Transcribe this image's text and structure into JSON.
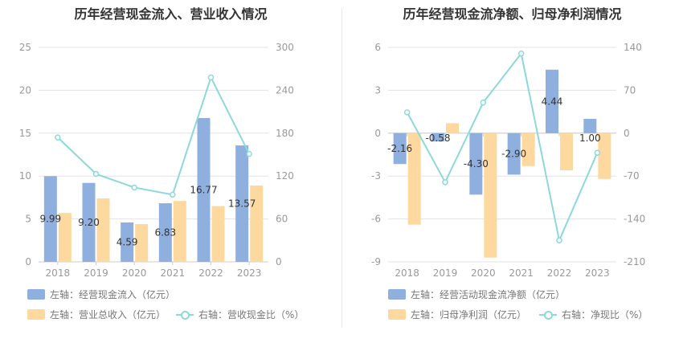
{
  "titles": {
    "left": "历年经营现金流入、营业收入情况",
    "right": "历年经营现金流净额、归母净利润情况"
  },
  "colors": {
    "bar_primary": "#8FAFDE",
    "bar_secondary": "#FDD9A0",
    "line": "#8DD8DB",
    "grid": "#E3E3E3",
    "axis_text": "#999999",
    "label_text": "#333333"
  },
  "legend_left": [
    {
      "kind": "bar",
      "color": "#8FAFDE",
      "label": "左轴：经营现金流入（亿元）"
    },
    {
      "kind": "bar",
      "color": "#FDD9A0",
      "label": "左轴：营业总收入（亿元）"
    },
    {
      "kind": "line",
      "color": "#8DD8DB",
      "label": "右轴：营收现金比（%）"
    }
  ],
  "legend_right": [
    {
      "kind": "bar",
      "color": "#8FAFDE",
      "label": "左轴：经营活动现金流净额（亿元）"
    },
    {
      "kind": "bar",
      "color": "#FDD9A0",
      "label": "左轴：归母净利润（亿元）"
    },
    {
      "kind": "line",
      "color": "#8DD8DB",
      "label": "右轴：净现比（%）"
    }
  ],
  "chart_data": [
    {
      "type": "bar",
      "title": "历年经营现金流入、营业收入情况",
      "categories": [
        "2018",
        "2019",
        "2020",
        "2021",
        "2022",
        "2023"
      ],
      "y_left": {
        "min": 0,
        "max": 25,
        "ticks": [
          "0",
          "5",
          "10",
          "15",
          "20",
          "25"
        ]
      },
      "y_right": {
        "min": 0,
        "max": 300,
        "ticks": [
          "0",
          "60",
          "120",
          "180",
          "240",
          "300"
        ]
      },
      "grid": true,
      "legend_position": "bottom",
      "series": [
        {
          "name": "经营现金流入",
          "axis": "left",
          "kind": "bar",
          "color": "#8FAFDE",
          "values": [
            9.99,
            9.2,
            4.59,
            6.83,
            16.77,
            13.57
          ],
          "labels": [
            "9.99",
            "9.20",
            "4.59",
            "6.83",
            "16.77",
            "13.57"
          ]
        },
        {
          "name": "营业总收入",
          "axis": "left",
          "kind": "bar",
          "color": "#FDD9A0",
          "values": [
            5.7,
            7.4,
            4.4,
            7.1,
            6.5,
            8.9
          ]
        },
        {
          "name": "营收现金比",
          "axis": "right",
          "kind": "line",
          "color": "#8DD8DB",
          "values": [
            174,
            123,
            104,
            94,
            258,
            151
          ]
        }
      ]
    },
    {
      "type": "bar",
      "title": "历年经营现金流净额、归母净利润情况",
      "categories": [
        "2018",
        "2019",
        "2020",
        "2021",
        "2022",
        "2023"
      ],
      "y_left": {
        "min": -9,
        "max": 6,
        "ticks": [
          "-9",
          "-6",
          "-3",
          "0",
          "3",
          "6"
        ]
      },
      "y_right": {
        "min": -210,
        "max": 140,
        "ticks": [
          "-210",
          "-140",
          "-70",
          "0",
          "70",
          "140"
        ]
      },
      "grid": true,
      "legend_position": "bottom",
      "series": [
        {
          "name": "经营活动现金流净额",
          "axis": "left",
          "kind": "bar",
          "color": "#8FAFDE",
          "values": [
            -2.16,
            -0.58,
            -4.3,
            -2.9,
            4.44,
            1.0
          ],
          "labels": [
            "-2.16",
            "-0.58",
            "-4.30",
            "-2.90",
            "4.44",
            "1.00"
          ]
        },
        {
          "name": "归母净利润",
          "axis": "left",
          "kind": "bar",
          "color": "#FDD9A0",
          "values": [
            -6.4,
            0.7,
            -8.7,
            -2.3,
            -2.6,
            -3.2
          ]
        },
        {
          "name": "净现比",
          "axis": "right",
          "kind": "line",
          "color": "#8DD8DB",
          "values": [
            34,
            -80,
            50,
            130,
            -175,
            -32
          ]
        }
      ]
    }
  ]
}
